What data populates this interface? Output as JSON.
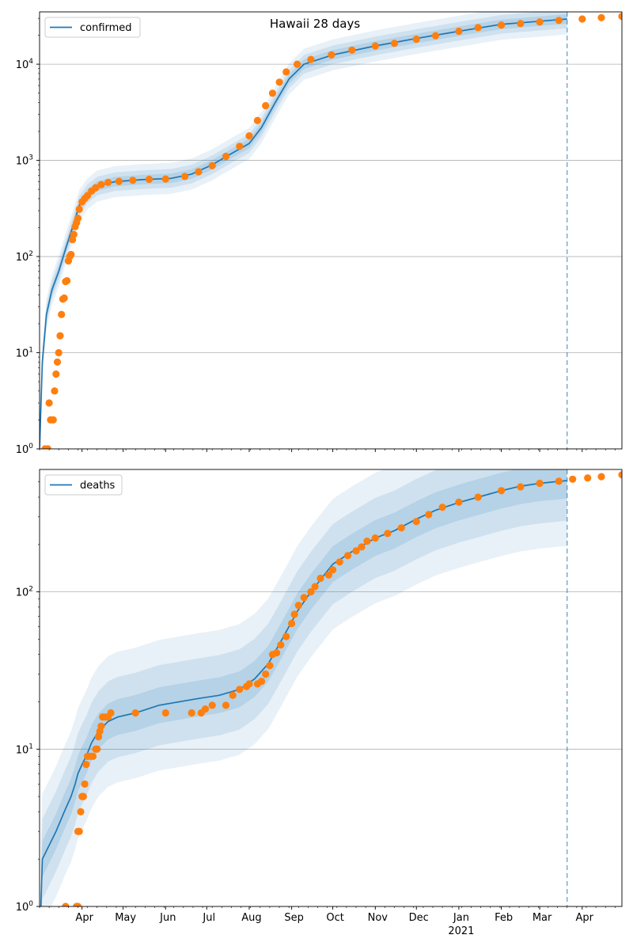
{
  "chart_data": [
    {
      "type": "line",
      "title": "Hawaii 28 days",
      "xlabel": "",
      "ylabel": "",
      "yscale": "log",
      "ylim": [
        1,
        35000
      ],
      "x_axis": {
        "type": "date",
        "range": [
          "2020-03-01",
          "2021-04-30"
        ]
      },
      "grid": "y",
      "legend_placement": "top-left",
      "vline_date": "2021-03-21",
      "colors": {
        "line": "#1f77b4",
        "points": "#ff7f0e",
        "band": "#1f77b4"
      },
      "y_ticks": [
        {
          "value": 1,
          "base": "10",
          "exp": "0"
        },
        {
          "value": 10,
          "base": "10",
          "exp": "1"
        },
        {
          "value": 100,
          "base": "10",
          "exp": "2"
        },
        {
          "value": 1000,
          "base": "10",
          "exp": "3"
        },
        {
          "value": 10000,
          "base": "10",
          "exp": "4"
        }
      ],
      "series": [
        {
          "name": "confirmed",
          "kind": "model_line",
          "points": [
            [
              "2020-03-01",
              1
            ],
            [
              "2020-03-03",
              8
            ],
            [
              "2020-03-06",
              25
            ],
            [
              "2020-03-10",
              45
            ],
            [
              "2020-03-15",
              70
            ],
            [
              "2020-03-20",
              120
            ],
            [
              "2020-03-25",
              200
            ],
            [
              "2020-03-30",
              340
            ],
            [
              "2020-04-05",
              450
            ],
            [
              "2020-04-12",
              540
            ],
            [
              "2020-04-25",
              600
            ],
            [
              "2020-05-15",
              630
            ],
            [
              "2020-06-05",
              650
            ],
            [
              "2020-06-20",
              720
            ],
            [
              "2020-07-05",
              900
            ],
            [
              "2020-07-20",
              1200
            ],
            [
              "2020-08-01",
              1500
            ],
            [
              "2020-08-10",
              2200
            ],
            [
              "2020-08-20",
              4000
            ],
            [
              "2020-08-30",
              7000
            ],
            [
              "2020-09-10",
              10000
            ],
            [
              "2020-10-01",
              12500
            ],
            [
              "2020-11-01",
              15500
            ],
            [
              "2020-12-01",
              18500
            ],
            [
              "2021-01-01",
              22000
            ],
            [
              "2021-02-01",
              26000
            ],
            [
              "2021-03-01",
              28000
            ],
            [
              "2021-03-21",
              29500
            ]
          ]
        },
        {
          "name": "",
          "kind": "observed_points",
          "points": [
            [
              "2020-03-05",
              1
            ],
            [
              "2020-03-07",
              1
            ],
            [
              "2020-03-08",
              3
            ],
            [
              "2020-03-09",
              2
            ],
            [
              "2020-03-11",
              2
            ],
            [
              "2020-03-12",
              4
            ],
            [
              "2020-03-13",
              6
            ],
            [
              "2020-03-14",
              8
            ],
            [
              "2020-03-15",
              10
            ],
            [
              "2020-03-16",
              15
            ],
            [
              "2020-03-17",
              25
            ],
            [
              "2020-03-18",
              36
            ],
            [
              "2020-03-19",
              37
            ],
            [
              "2020-03-20",
              55
            ],
            [
              "2020-03-21",
              56
            ],
            [
              "2020-03-22",
              90
            ],
            [
              "2020-03-23",
              100
            ],
            [
              "2020-03-24",
              105
            ],
            [
              "2020-03-25",
              150
            ],
            [
              "2020-03-26",
              170
            ],
            [
              "2020-03-27",
              205
            ],
            [
              "2020-03-28",
              225
            ],
            [
              "2020-03-29",
              250
            ],
            [
              "2020-03-30",
              310
            ],
            [
              "2020-04-01",
              370
            ],
            [
              "2020-04-03",
              400
            ],
            [
              "2020-04-05",
              430
            ],
            [
              "2020-04-08",
              480
            ],
            [
              "2020-04-11",
              520
            ],
            [
              "2020-04-15",
              560
            ],
            [
              "2020-04-20",
              590
            ],
            [
              "2020-04-28",
              605
            ],
            [
              "2020-05-08",
              620
            ],
            [
              "2020-05-20",
              635
            ],
            [
              "2020-06-01",
              640
            ],
            [
              "2020-06-15",
              680
            ],
            [
              "2020-06-25",
              760
            ],
            [
              "2020-07-05",
              880
            ],
            [
              "2020-07-15",
              1100
            ],
            [
              "2020-07-25",
              1400
            ],
            [
              "2020-08-01",
              1800
            ],
            [
              "2020-08-07",
              2600
            ],
            [
              "2020-08-13",
              3700
            ],
            [
              "2020-08-18",
              5000
            ],
            [
              "2020-08-23",
              6500
            ],
            [
              "2020-08-28",
              8300
            ],
            [
              "2020-09-05",
              10000
            ],
            [
              "2020-09-15",
              11200
            ],
            [
              "2020-09-30",
              12500
            ],
            [
              "2020-10-15",
              14000
            ],
            [
              "2020-11-01",
              15500
            ],
            [
              "2020-11-15",
              16500
            ],
            [
              "2020-12-01",
              18200
            ],
            [
              "2020-12-15",
              19800
            ],
            [
              "2021-01-01",
              22000
            ],
            [
              "2021-01-15",
              24000
            ],
            [
              "2021-02-01",
              25500
            ],
            [
              "2021-02-15",
              26500
            ],
            [
              "2021-03-01",
              27500
            ],
            [
              "2021-03-15",
              28500
            ],
            [
              "2021-04-01",
              29500
            ],
            [
              "2021-04-15",
              30500
            ],
            [
              "2021-04-30",
              31500
            ]
          ]
        }
      ]
    },
    {
      "type": "line",
      "title": "",
      "xlabel": "",
      "ylabel": "",
      "yscale": "log",
      "ylim": [
        1,
        600
      ],
      "x_axis": {
        "type": "date",
        "range": [
          "2020-03-01",
          "2021-04-30"
        ]
      },
      "grid": "y",
      "legend_placement": "top-left",
      "vline_date": "2021-03-21",
      "colors": {
        "line": "#1f77b4",
        "points": "#ff7f0e",
        "band": "#1f77b4"
      },
      "y_ticks": [
        {
          "value": 1,
          "base": "10",
          "exp": "0"
        },
        {
          "value": 10,
          "base": "10",
          "exp": "1"
        },
        {
          "value": 100,
          "base": "10",
          "exp": "2"
        }
      ],
      "x_tick_labels": [
        {
          "date": "2020-04-01",
          "label": "Apr"
        },
        {
          "date": "2020-05-01",
          "label": "May"
        },
        {
          "date": "2020-06-01",
          "label": "Jun"
        },
        {
          "date": "2020-07-01",
          "label": "Jul"
        },
        {
          "date": "2020-08-01",
          "label": "Aug"
        },
        {
          "date": "2020-09-01",
          "label": "Sep"
        },
        {
          "date": "2020-10-01",
          "label": "Oct"
        },
        {
          "date": "2020-11-01",
          "label": "Nov"
        },
        {
          "date": "2020-12-01",
          "label": "Dec"
        },
        {
          "date": "2021-01-01",
          "label": "Jan",
          "sublabel": "2021"
        },
        {
          "date": "2021-02-01",
          "label": "Feb"
        },
        {
          "date": "2021-03-01",
          "label": "Mar"
        },
        {
          "date": "2021-04-01",
          "label": "Apr"
        }
      ],
      "series": [
        {
          "name": "deaths",
          "kind": "model_line",
          "points": [
            [
              "2020-03-02",
              1
            ],
            [
              "2020-03-03",
              2
            ],
            [
              "2020-03-13",
              3
            ],
            [
              "2020-03-19",
              4
            ],
            [
              "2020-03-24",
              5
            ],
            [
              "2020-03-27",
              6
            ],
            [
              "2020-03-29",
              7
            ],
            [
              "2020-04-01",
              8
            ],
            [
              "2020-04-04",
              9
            ],
            [
              "2020-04-08",
              11
            ],
            [
              "2020-04-13",
              13
            ],
            [
              "2020-04-20",
              15
            ],
            [
              "2020-04-27",
              16
            ],
            [
              "2020-05-10",
              17
            ],
            [
              "2020-05-27",
              19
            ],
            [
              "2020-06-25",
              21
            ],
            [
              "2020-07-10",
              22
            ],
            [
              "2020-07-25",
              24
            ],
            [
              "2020-08-05",
              28
            ],
            [
              "2020-08-15",
              35
            ],
            [
              "2020-08-25",
              50
            ],
            [
              "2020-09-05",
              75
            ],
            [
              "2020-09-15",
              100
            ],
            [
              "2020-10-01",
              150
            ],
            [
              "2020-10-15",
              180
            ],
            [
              "2020-11-01",
              220
            ],
            [
              "2020-11-15",
              245
            ],
            [
              "2020-12-01",
              290
            ],
            [
              "2020-12-15",
              330
            ],
            [
              "2021-01-01",
              370
            ],
            [
              "2021-01-15",
              400
            ],
            [
              "2021-02-01",
              440
            ],
            [
              "2021-02-15",
              470
            ],
            [
              "2021-03-01",
              490
            ],
            [
              "2021-03-21",
              510
            ]
          ]
        },
        {
          "name": "",
          "kind": "observed_points",
          "points": [
            [
              "2020-03-20",
              1
            ],
            [
              "2020-03-28",
              1
            ],
            [
              "2020-03-29",
              1
            ],
            [
              "2020-03-29",
              3
            ],
            [
              "2020-03-30",
              3
            ],
            [
              "2020-03-31",
              4
            ],
            [
              "2020-04-01",
              5
            ],
            [
              "2020-04-02",
              5
            ],
            [
              "2020-04-03",
              6
            ],
            [
              "2020-04-04",
              8
            ],
            [
              "2020-04-05",
              9
            ],
            [
              "2020-04-07",
              9
            ],
            [
              "2020-04-09",
              9
            ],
            [
              "2020-04-11",
              10
            ],
            [
              "2020-04-12",
              10
            ],
            [
              "2020-04-13",
              12
            ],
            [
              "2020-04-14",
              13
            ],
            [
              "2020-04-15",
              14
            ],
            [
              "2020-04-16",
              16
            ],
            [
              "2020-04-18",
              16
            ],
            [
              "2020-04-20",
              16
            ],
            [
              "2020-04-22",
              17
            ],
            [
              "2020-05-10",
              17
            ],
            [
              "2020-06-01",
              17
            ],
            [
              "2020-06-20",
              17
            ],
            [
              "2020-06-27",
              17
            ],
            [
              "2020-06-30",
              18
            ],
            [
              "2020-07-05",
              19
            ],
            [
              "2020-07-15",
              19
            ],
            [
              "2020-07-20",
              22
            ],
            [
              "2020-07-25",
              24
            ],
            [
              "2020-07-30",
              25
            ],
            [
              "2020-08-01",
              26
            ],
            [
              "2020-08-07",
              26
            ],
            [
              "2020-08-10",
              27
            ],
            [
              "2020-08-13",
              30
            ],
            [
              "2020-08-16",
              34
            ],
            [
              "2020-08-18",
              40
            ],
            [
              "2020-08-21",
              41
            ],
            [
              "2020-08-24",
              46
            ],
            [
              "2020-08-28",
              52
            ],
            [
              "2020-09-01",
              63
            ],
            [
              "2020-09-03",
              72
            ],
            [
              "2020-09-06",
              82
            ],
            [
              "2020-09-10",
              92
            ],
            [
              "2020-09-15",
              100
            ],
            [
              "2020-09-18",
              108
            ],
            [
              "2020-09-22",
              122
            ],
            [
              "2020-09-28",
              128
            ],
            [
              "2020-10-01",
              138
            ],
            [
              "2020-10-06",
              155
            ],
            [
              "2020-10-12",
              170
            ],
            [
              "2020-10-18",
              182
            ],
            [
              "2020-10-22",
              193
            ],
            [
              "2020-10-26",
              210
            ],
            [
              "2020-11-01",
              220
            ],
            [
              "2020-11-10",
              235
            ],
            [
              "2020-11-20",
              255
            ],
            [
              "2020-12-01",
              280
            ],
            [
              "2020-12-10",
              310
            ],
            [
              "2020-12-20",
              345
            ],
            [
              "2021-01-01",
              372
            ],
            [
              "2021-01-15",
              400
            ],
            [
              "2021-02-01",
              440
            ],
            [
              "2021-02-15",
              465
            ],
            [
              "2021-03-01",
              490
            ],
            [
              "2021-03-15",
              505
            ],
            [
              "2021-03-25",
              520
            ],
            [
              "2021-04-05",
              530
            ],
            [
              "2021-04-15",
              540
            ],
            [
              "2021-04-30",
              555
            ]
          ]
        }
      ]
    }
  ]
}
